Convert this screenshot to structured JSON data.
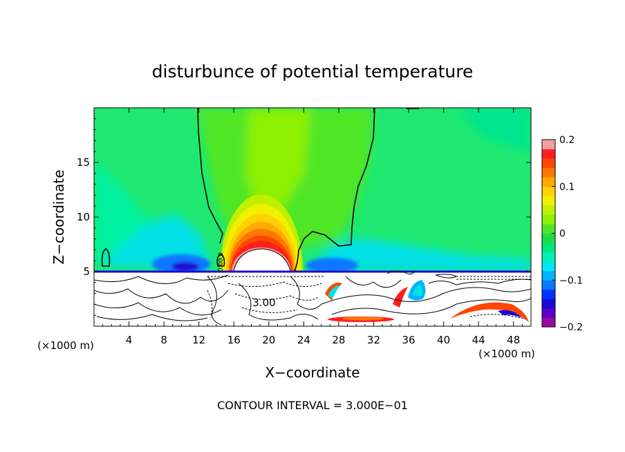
{
  "chart_data": {
    "type": "heatmap",
    "title": "disturbunce of potential temperature",
    "xlabel": "X−coordinate",
    "ylabel": "Z−coordinate",
    "x_unit_label": "(×1000 m)",
    "x_unit_label_right": "(×1000 m)",
    "xlim": [
      0,
      50
    ],
    "ylim": [
      0,
      20
    ],
    "xticks": [
      4,
      8,
      12,
      16,
      20,
      24,
      28,
      32,
      36,
      40,
      44,
      48
    ],
    "xtick_labels": [
      "4",
      "8",
      "12",
      "16",
      "20",
      "24",
      "28",
      "32",
      "36",
      "40",
      "44",
      "48"
    ],
    "yticks": [
      5,
      10,
      15
    ],
    "ytick_labels": [
      "5",
      "10",
      "15"
    ],
    "colorbar": {
      "min": -0.2,
      "max": 0.2,
      "levels": 20,
      "tick_values": [
        0.2,
        0.1,
        0,
        -0.1,
        -0.2
      ],
      "tick_labels": [
        "0.2",
        "0.1",
        "0",
        "−0.1",
        "−0.2"
      ],
      "colors": [
        "#9a0aa0",
        "#5b00c8",
        "#1a0ad6",
        "#0032ff",
        "#0a78ff",
        "#00b4ff",
        "#00e6f0",
        "#00f0b4",
        "#00e678",
        "#1edc46",
        "#50e628",
        "#8cf000",
        "#bef000",
        "#f0f000",
        "#ffd200",
        "#ffaa00",
        "#ff7800",
        "#ff4600",
        "#ff1e1e",
        "#f0a0a0"
      ]
    },
    "contour_labels": [
      "3.00",
      "0.0",
      "0.0"
    ],
    "footer": "CONTOUR INTERVAL = 3.000E−01"
  }
}
